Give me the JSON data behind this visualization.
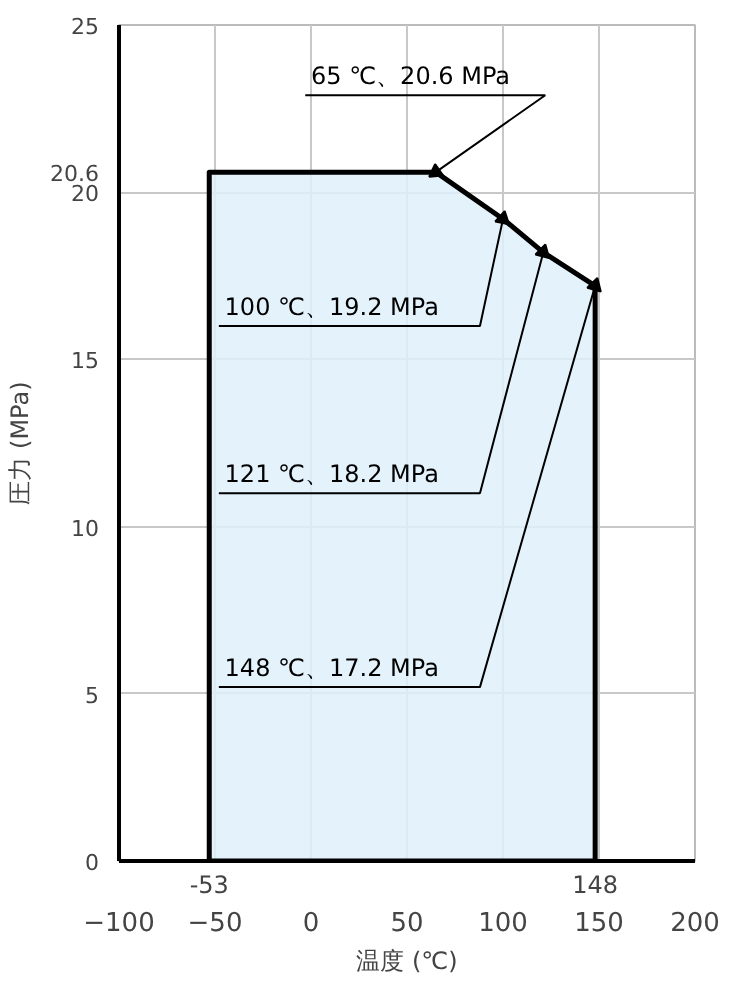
{
  "chart_data": {
    "type": "area",
    "xlabel": "温度 (℃)",
    "ylabel": "圧力 (MPa)",
    "x": [
      -53,
      -53,
      65,
      100,
      121,
      148,
      148
    ],
    "series": [
      {
        "color": "#dff0fa",
        "values": [
          0,
          20.6,
          20.6,
          19.2,
          18.2,
          17.2,
          0
        ]
      }
    ],
    "xlim": [
      -100,
      200
    ],
    "ylim": [
      0,
      25
    ],
    "xticks": [
      -100,
      -50,
      0,
      50,
      100,
      150,
      200
    ],
    "yticks": [
      0,
      5,
      10,
      15,
      20,
      25,
      {
        "value": 20.6,
        "label": "20.6"
      }
    ],
    "grid": true,
    "annotations": [
      {
        "text": "65 ℃、20.6 MPa",
        "x": 65,
        "y": 20.6
      },
      {
        "text": "100 ℃、19.2 MPa",
        "x": 100,
        "y": 19.2
      },
      {
        "text": "121 ℃、18.2 MPa",
        "x": 121,
        "y": 18.2
      },
      {
        "text": "148 ℃、17.2 MPa",
        "x": 148,
        "y": 17.2
      },
      {
        "text": "-53",
        "x": -53,
        "y": 0
      },
      {
        "text": "148",
        "x": 148,
        "y": 0
      }
    ]
  }
}
